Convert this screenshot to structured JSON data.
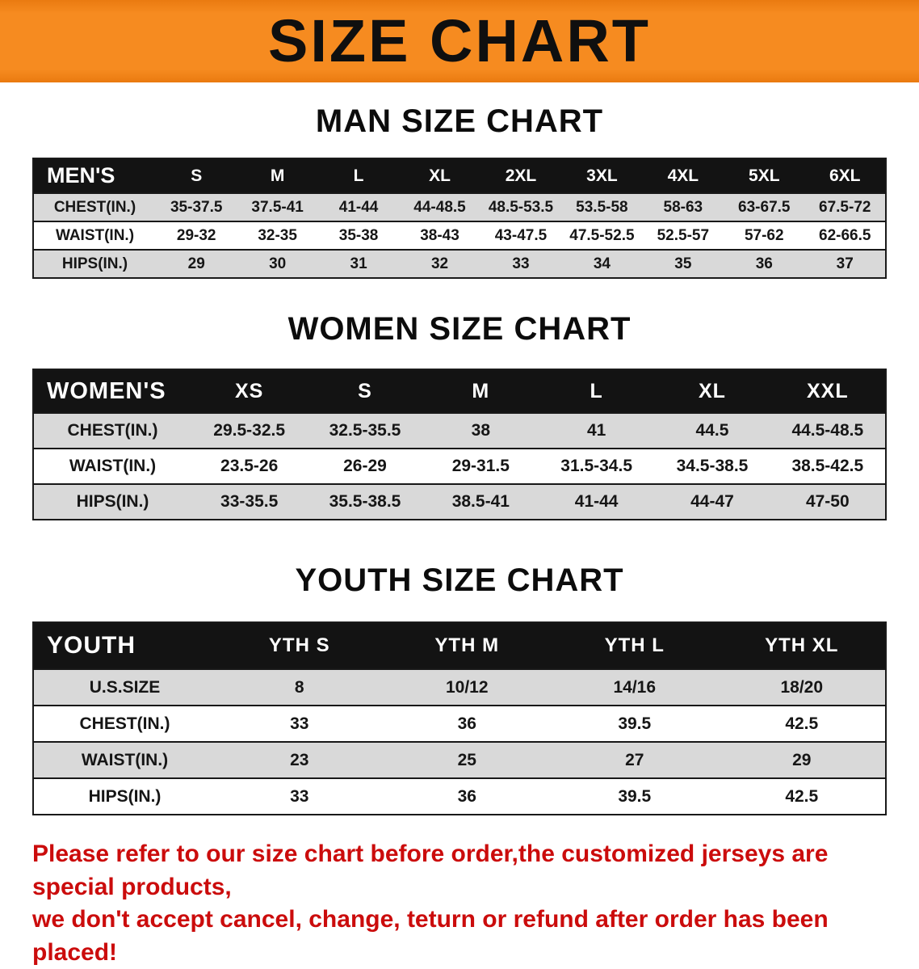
{
  "banner": {
    "title": "SIZE CHART"
  },
  "colors": {
    "banner_orange": "#f68b20",
    "table_header_black": "#131313",
    "row_gray": "#d9d9d9",
    "note_red": "#cb0c0c"
  },
  "sections": {
    "men": {
      "heading": "MAN SIZE CHART",
      "header": [
        "MEN'S",
        "S",
        "M",
        "L",
        "XL",
        "2XL",
        "3XL",
        "4XL",
        "5XL",
        "6XL"
      ],
      "rows": [
        [
          "CHEST(IN.)",
          "35-37.5",
          "37.5-41",
          "41-44",
          "44-48.5",
          "48.5-53.5",
          "53.5-58",
          "58-63",
          "63-67.5",
          "67.5-72"
        ],
        [
          "WAIST(IN.)",
          "29-32",
          "32-35",
          "35-38",
          "38-43",
          "43-47.5",
          "47.5-52.5",
          "52.5-57",
          "57-62",
          "62-66.5"
        ],
        [
          "HIPS(IN.)",
          "29",
          "30",
          "31",
          "32",
          "33",
          "34",
          "35",
          "36",
          "37"
        ]
      ]
    },
    "women": {
      "heading": "WOMEN SIZE CHART",
      "header": [
        "WOMEN'S",
        "XS",
        "S",
        "M",
        "L",
        "XL",
        "XXL"
      ],
      "rows": [
        [
          "CHEST(IN.)",
          "29.5-32.5",
          "32.5-35.5",
          "38",
          "41",
          "44.5",
          "44.5-48.5"
        ],
        [
          "WAIST(IN.)",
          "23.5-26",
          "26-29",
          "29-31.5",
          "31.5-34.5",
          "34.5-38.5",
          "38.5-42.5"
        ],
        [
          "HIPS(IN.)",
          "33-35.5",
          "35.5-38.5",
          "38.5-41",
          "41-44",
          "44-47",
          "47-50"
        ]
      ]
    },
    "youth": {
      "heading": "YOUTH SIZE CHART",
      "header": [
        "YOUTH",
        "YTH S",
        "YTH M",
        "YTH L",
        "YTH XL"
      ],
      "rows": [
        [
          "U.S.SIZE",
          "8",
          "10/12",
          "14/16",
          "18/20"
        ],
        [
          "CHEST(IN.)",
          "33",
          "36",
          "39.5",
          "42.5"
        ],
        [
          "WAIST(IN.)",
          "23",
          "25",
          "27",
          "29"
        ],
        [
          "HIPS(IN.)",
          "33",
          "36",
          "39.5",
          "42.5"
        ]
      ]
    }
  },
  "footnote": {
    "line1": "Please refer to our size chart before order,the customized jerseys are special products,",
    "line2": "we don't accept cancel, change, teturn or refund after order has been placed!"
  }
}
